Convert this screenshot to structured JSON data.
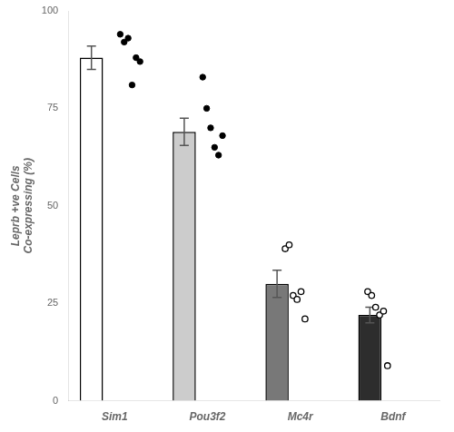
{
  "chart_data": {
    "type": "bar",
    "categories": [
      "Sim1",
      "Pou3f2",
      "Mc4r",
      "Bdnf"
    ],
    "ylabel": "Leprb +ve Cells\nCo-expressing (%)",
    "ylim": [
      0,
      100
    ],
    "yticks": [
      0,
      25,
      50,
      75,
      100
    ],
    "grid": false,
    "series": [
      {
        "type": "bar",
        "values": [
          88,
          69,
          30,
          22
        ],
        "errors": [
          3.0,
          3.5,
          3.5,
          2.0
        ],
        "colors": [
          "#ffffff",
          "#cccccc",
          "#787878",
          "#2d2d2d"
        ]
      },
      {
        "type": "scatter",
        "marker": "circle",
        "color": "#000000",
        "values": [
          [
            94,
            92,
            93,
            81,
            88,
            87
          ],
          [
            83,
            75,
            70,
            65,
            63,
            68
          ],
          null,
          null
        ]
      },
      {
        "type": "scatter",
        "marker": "open",
        "color": "#000000",
        "values": [
          null,
          null,
          [
            39,
            40,
            27,
            26,
            28,
            21
          ],
          [
            28,
            27,
            24,
            22,
            23,
            9
          ]
        ]
      }
    ]
  }
}
